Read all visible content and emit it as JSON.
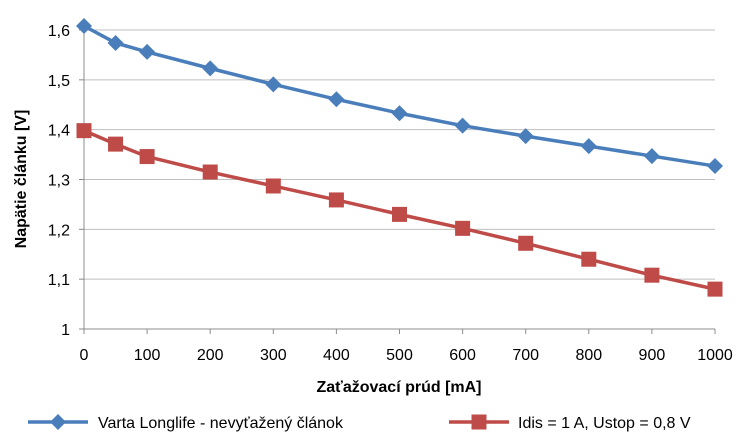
{
  "chart_data": {
    "type": "line",
    "xlabel": "Zaťažovací prúd [mA]",
    "ylabel": "Napätie článku [V]",
    "x": [
      0,
      50,
      100,
      200,
      300,
      400,
      500,
      600,
      700,
      800,
      900,
      1000
    ],
    "xticks": [
      0,
      100,
      200,
      300,
      400,
      500,
      600,
      700,
      800,
      900,
      1000
    ],
    "xtick_labels": [
      "0",
      "100",
      "200",
      "300",
      "400",
      "500",
      "600",
      "700",
      "800",
      "900",
      "1000"
    ],
    "yticks": [
      1.0,
      1.1,
      1.2,
      1.3,
      1.4,
      1.5,
      1.6
    ],
    "ytick_labels": [
      "1",
      "1,1",
      "1,2",
      "1,3",
      "1,4",
      "1,5",
      "1,6"
    ],
    "xlim": [
      0,
      1000
    ],
    "ylim": [
      1.0,
      1.6
    ],
    "grid": "horizontal",
    "legend_position": "bottom",
    "series": [
      {
        "name": "Varta Longlife - nevyťažený článok",
        "color": "#4a7ebb",
        "marker": "diamond",
        "values": [
          1.608,
          1.574,
          1.556,
          1.523,
          1.491,
          1.461,
          1.433,
          1.408,
          1.387,
          1.367,
          1.347,
          1.327
        ]
      },
      {
        "name": "Idis = 1 A, Ustop = 0,8 V",
        "color": "#be4b48",
        "marker": "square",
        "values": [
          1.398,
          1.371,
          1.346,
          1.315,
          1.287,
          1.259,
          1.23,
          1.202,
          1.172,
          1.14,
          1.108,
          1.08
        ]
      }
    ]
  }
}
